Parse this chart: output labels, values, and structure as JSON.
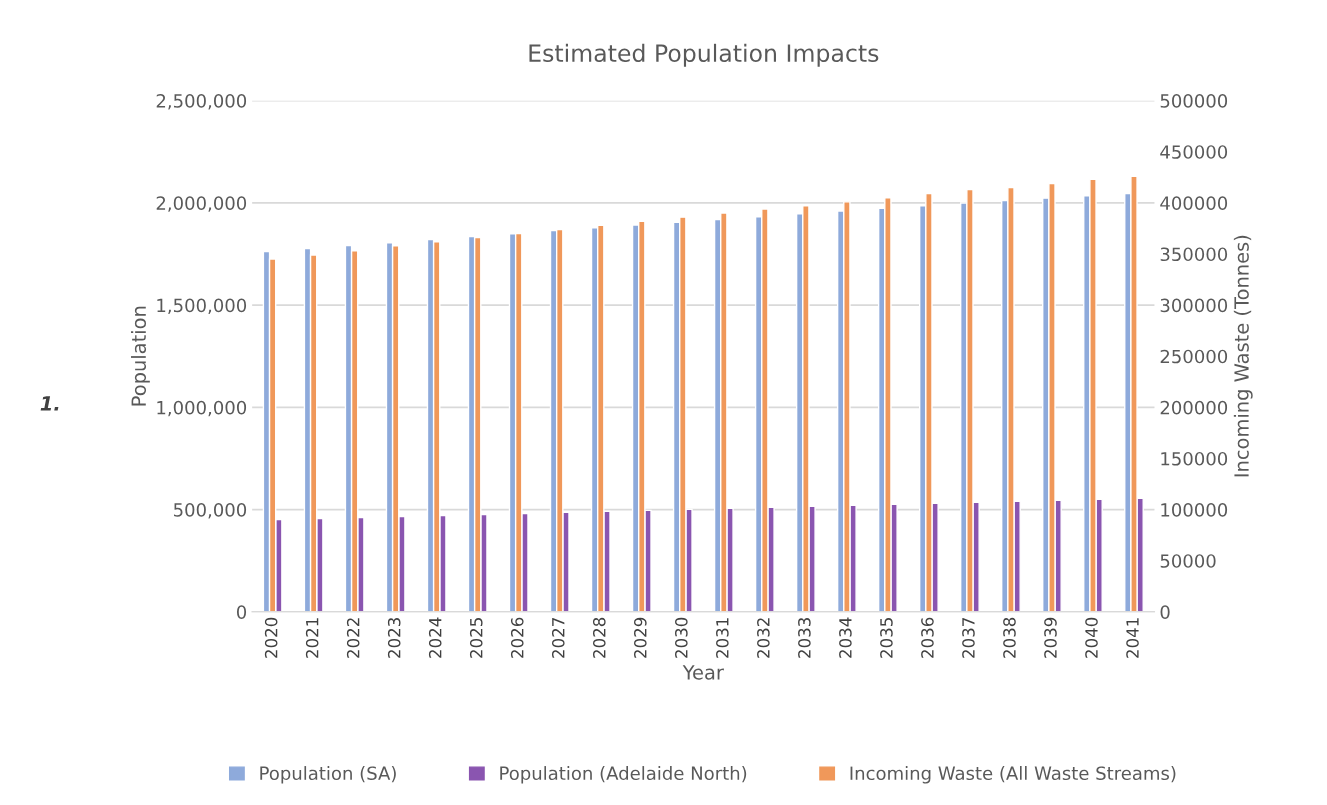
{
  "chart_data": {
    "type": "bar",
    "title": "Estimated Population Impacts",
    "xlabel": "Year",
    "ylabel": "Population",
    "y2label": "Incoming Waste (Tonnes)",
    "categories": [
      "2020",
      "2021",
      "2022",
      "2023",
      "2024",
      "2025",
      "2026",
      "2027",
      "2028",
      "2029",
      "2030",
      "2031",
      "2032",
      "2033",
      "2034",
      "2035",
      "2036",
      "2037",
      "2038",
      "2039",
      "2040",
      "2041"
    ],
    "series": [
      {
        "name": "Population (SA)",
        "color": "#8eaadb",
        "values": [
          1762000,
          1776000,
          1791000,
          1805000,
          1820000,
          1835000,
          1849000,
          1864000,
          1878000,
          1892000,
          1905000,
          1918000,
          1932000,
          1946000,
          1960000,
          1973000,
          1986000,
          1999000,
          2011000,
          2023000,
          2034000,
          2045000
        ]
      },
      {
        "name": "Population (Adelaide North)",
        "color": "#8a55b0",
        "values": [
          451000,
          456000,
          461000,
          466000,
          471000,
          476000,
          481000,
          486000,
          491000,
          496000,
          501000,
          506000,
          511000,
          516000,
          521000,
          526000,
          531000,
          535000,
          540000,
          545000,
          550000,
          555000
        ]
      },
      {
        "name": "Incoming Waste (All Waste Streams)",
        "color": "#f0985a",
        "axis": "y2",
        "values": [
          345000,
          349000,
          353000,
          358000,
          362000,
          366000,
          370000,
          374000,
          378000,
          382000,
          386000,
          390000,
          394000,
          397000,
          401000,
          405000,
          409000,
          413000,
          415000,
          419000,
          423000,
          426000
        ]
      }
    ],
    "ylim": [
      0,
      2500000
    ],
    "yticks": [
      {
        "value": 0,
        "label": "0"
      },
      {
        "value": 500000,
        "label": "500,000"
      },
      {
        "value": 1000000,
        "label": "1,000,000"
      },
      {
        "value": 1500000,
        "label": "1,500,000"
      },
      {
        "value": 2000000,
        "label": "2,000,000"
      },
      {
        "value": 2500000,
        "label": "2,500,000"
      }
    ],
    "y2lim": [
      0,
      500000
    ],
    "y2ticks": [
      0,
      50000,
      100000,
      150000,
      200000,
      250000,
      300000,
      350000,
      400000,
      450000,
      500000
    ],
    "grid": "y",
    "legend": "bottom",
    "annotations": [
      "1."
    ]
  }
}
